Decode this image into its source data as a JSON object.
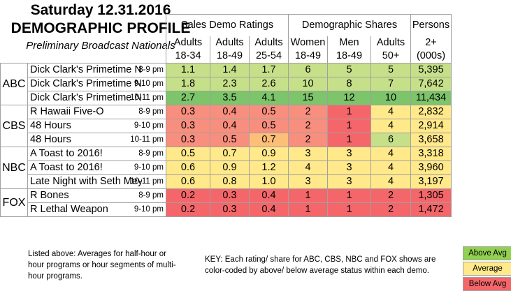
{
  "header": {
    "title_line1": "Saturday 12.31.2016",
    "title_line2": "DEMOGRAPHIC PROFILE",
    "subtitle": "Preliminary Broadcast Nationals"
  },
  "column_groups": {
    "sales_demo": "Sales Demo Ratings",
    "demo_shares": "Demographic Shares",
    "persons": "Persons"
  },
  "columns": [
    {
      "line1": "Adults",
      "line2": "18-34"
    },
    {
      "line1": "Adults",
      "line2": "18-49"
    },
    {
      "line1": "Adults",
      "line2": "25-54"
    },
    {
      "line1": "Women",
      "line2": "18-49"
    },
    {
      "line1": "Men",
      "line2": "18-49"
    },
    {
      "line1": "Adults",
      "line2": "50+"
    },
    {
      "line1": "2+",
      "line2": "(000s)"
    }
  ],
  "colors": {
    "above": "#92d050",
    "above_light": "#c6e08a",
    "above_strong": "#7dc46a",
    "average": "#ffe98a",
    "average_orange": "#fdbf78",
    "below": "#f4666a",
    "below_light": "#f88e7e",
    "border": "#a0a0a0"
  },
  "networks": [
    {
      "name": "ABC",
      "rows": [
        {
          "show": "Dick Clark's Primetime Ne",
          "slot": "8-9 pm",
          "values": [
            "1.1",
            "1.4",
            "1.7",
            "6",
            "5",
            "5",
            "5,395"
          ],
          "levels": [
            "al",
            "al",
            "al",
            "al",
            "al",
            "al",
            "al"
          ]
        },
        {
          "show": "Dick Clark's Primetime Ne",
          "slot": "9-10 pm",
          "values": [
            "1.8",
            "2.3",
            "2.6",
            "10",
            "8",
            "7",
            "7,642"
          ],
          "levels": [
            "al",
            "al",
            "al",
            "al",
            "al",
            "al",
            "al"
          ]
        },
        {
          "show": "Dick Clark's Primetime Ne",
          "slot": "10-11 pm",
          "values": [
            "2.7",
            "3.5",
            "4.1",
            "15",
            "12",
            "10",
            "11,434"
          ],
          "levels": [
            "as",
            "as",
            "as",
            "as",
            "as",
            "as",
            "as"
          ]
        }
      ]
    },
    {
      "name": "CBS",
      "rows": [
        {
          "show": "R Hawaii Five-O",
          "slot": "8-9 pm",
          "values": [
            "0.3",
            "0.4",
            "0.5",
            "2",
            "1",
            "4",
            "2,832"
          ],
          "levels": [
            "bl",
            "bl",
            "bl",
            "bl",
            "b",
            "av",
            "av"
          ]
        },
        {
          "show": "48 Hours",
          "slot": "9-10 pm",
          "values": [
            "0.3",
            "0.4",
            "0.5",
            "2",
            "1",
            "4",
            "2,914"
          ],
          "levels": [
            "bl",
            "bl",
            "bl",
            "bl",
            "b",
            "av",
            "av"
          ]
        },
        {
          "show": "48 Hours",
          "slot": "10-11 pm",
          "values": [
            "0.3",
            "0.5",
            "0.7",
            "2",
            "1",
            "6",
            "3,658"
          ],
          "levels": [
            "bl",
            "bl",
            "ao",
            "bl",
            "b",
            "al",
            "av"
          ]
        }
      ]
    },
    {
      "name": "NBC",
      "rows": [
        {
          "show": "A Toast to 2016!",
          "slot": "8-9 pm",
          "values": [
            "0.5",
            "0.7",
            "0.9",
            "3",
            "3",
            "4",
            "3,318"
          ],
          "levels": [
            "av",
            "av",
            "av",
            "av",
            "av",
            "av",
            "av"
          ]
        },
        {
          "show": "A Toast to 2016!",
          "slot": "9-10 pm",
          "values": [
            "0.6",
            "0.9",
            "1.2",
            "4",
            "3",
            "4",
            "3,960"
          ],
          "levels": [
            "av",
            "av",
            "av",
            "av",
            "av",
            "av",
            "av"
          ]
        },
        {
          "show": "Late Night with Seth Meye",
          "slot": "10-11 pm",
          "values": [
            "0.6",
            "0.8",
            "1.0",
            "3",
            "3",
            "4",
            "3,197"
          ],
          "levels": [
            "av",
            "av",
            "av",
            "av",
            "av",
            "av",
            "av"
          ]
        }
      ]
    },
    {
      "name": "FOX",
      "rows": [
        {
          "show": "R Bones",
          "slot": "8-9 pm",
          "values": [
            "0.2",
            "0.3",
            "0.4",
            "1",
            "1",
            "2",
            "1,305"
          ],
          "levels": [
            "b",
            "b",
            "b",
            "b",
            "b",
            "b",
            "b"
          ]
        },
        {
          "show": "R Lethal Weapon",
          "slot": "9-10 pm",
          "values": [
            "0.2",
            "0.3",
            "0.4",
            "1",
            "1",
            "2",
            "1,472"
          ],
          "levels": [
            "b",
            "b",
            "b",
            "b",
            "b",
            "b",
            "b"
          ]
        }
      ]
    }
  ],
  "notes": "Listed above: Averages for half-hour or hour programs or hour segments of multi-hour programs.",
  "key_text": "KEY: Each rating/ share for ABC, CBS, NBC and FOX shows are color-coded by above/ below average status within each demo.",
  "legend": {
    "above": "Above Avg",
    "average": "Average",
    "below": "Below Avg"
  }
}
